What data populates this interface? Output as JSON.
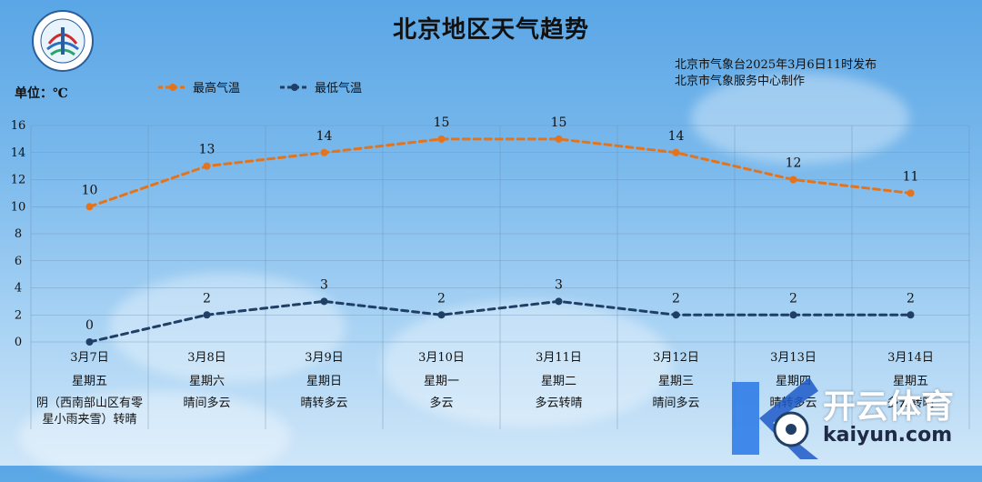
{
  "header": {
    "title": "北京地区天气趋势",
    "issuer_line1": "北京市气象台2025年3月6日11时发布",
    "issuer_line2": "北京市气象服务中心制作",
    "unit_label": "单位：℃"
  },
  "watermark": {
    "cn": "开云体育",
    "en": "kaiyun.com"
  },
  "colors": {
    "high": "#e4741c",
    "low": "#1f3f66",
    "grid": "#6f8fb0"
  },
  "chart_data": {
    "type": "line",
    "ylim": [
      0,
      16
    ],
    "yticks": [
      0,
      2,
      4,
      6,
      8,
      10,
      12,
      14,
      16
    ],
    "grid": true,
    "legend_position": "top-left",
    "categories": [
      "3月7日",
      "3月8日",
      "3月9日",
      "3月10日",
      "3月11日",
      "3月12日",
      "3月13日",
      "3月14日"
    ],
    "weekdays": [
      "星期五",
      "星期六",
      "星期日",
      "星期一",
      "星期二",
      "星期三",
      "星期四",
      "星期五"
    ],
    "weather": [
      "阴（西南部山区有零星小雨夹雪）转晴",
      "晴间多云",
      "晴转多云",
      "多云",
      "多云转晴",
      "晴间多云",
      "晴转多云",
      "多云转晴"
    ],
    "series": [
      {
        "name": "最高气温",
        "values": [
          10,
          13,
          14,
          15,
          15,
          14,
          12,
          11
        ]
      },
      {
        "name": "最低气温",
        "values": [
          0,
          2,
          3,
          2,
          3,
          2,
          2,
          2
        ]
      }
    ]
  }
}
